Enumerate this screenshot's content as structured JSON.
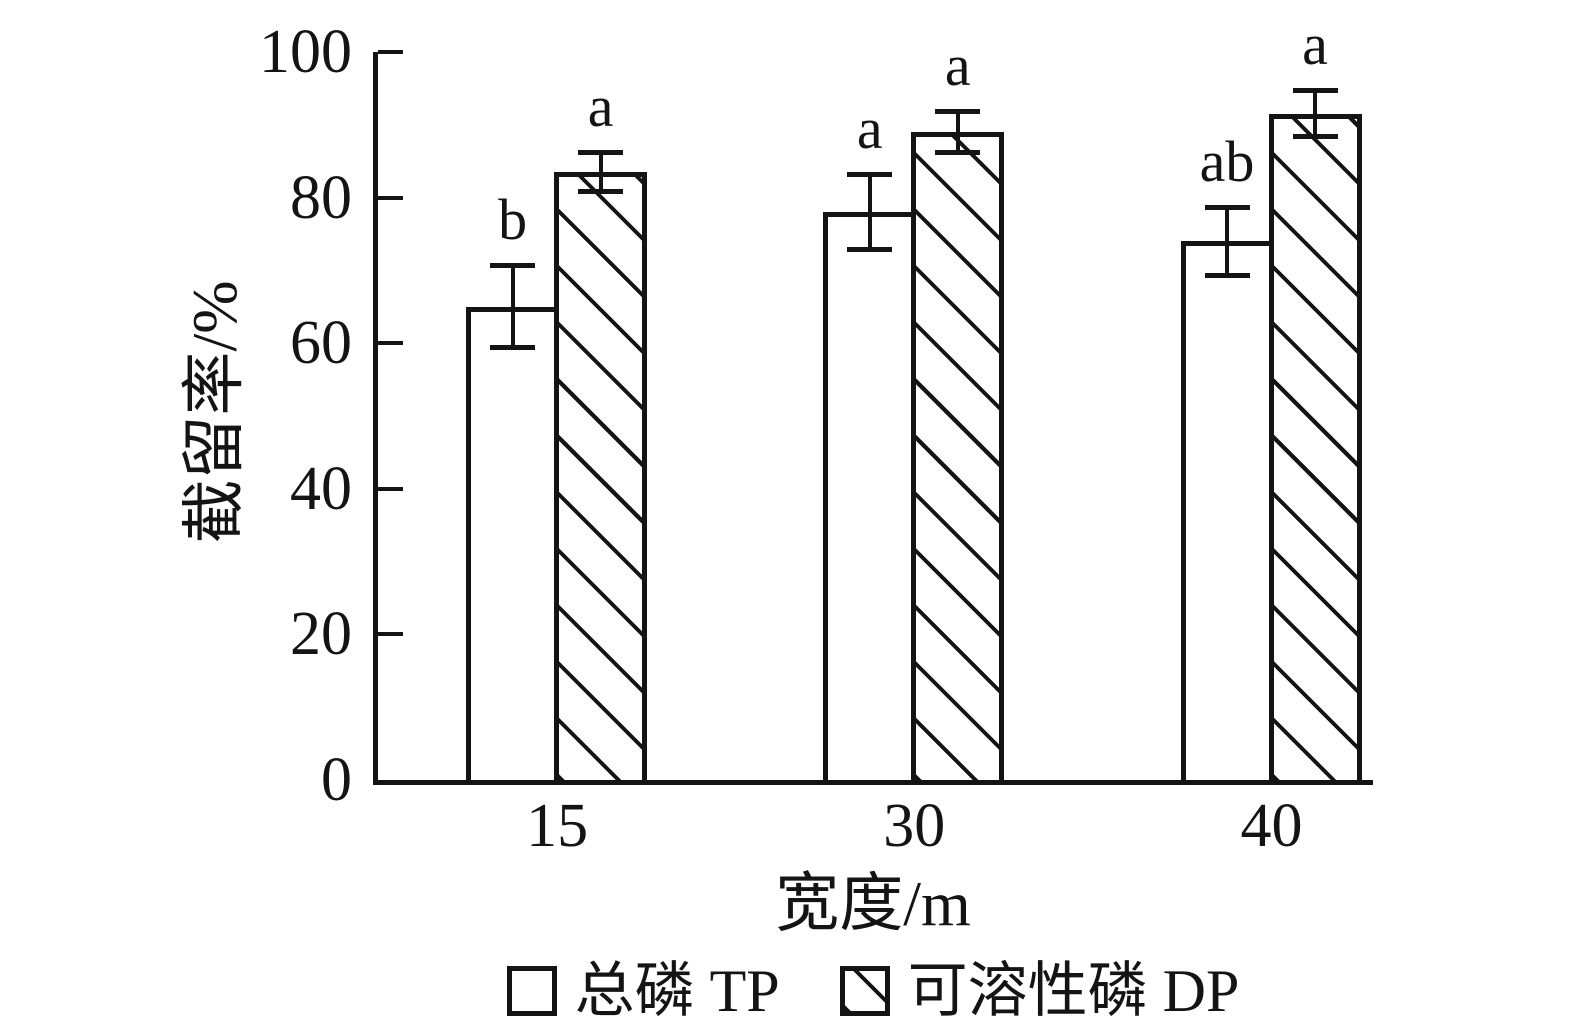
{
  "colors": {
    "ink": "#141414",
    "background": "#ffffff"
  },
  "chart_data": {
    "type": "bar",
    "title": "",
    "xlabel": "宽度/m",
    "ylabel": "截留率/%",
    "categories": [
      "15",
      "30",
      "40"
    ],
    "ylim": [
      0,
      100
    ],
    "yticks": [
      "0",
      "20",
      "40",
      "60",
      "80",
      "100"
    ],
    "grid": false,
    "legend_position": "bottom",
    "series": [
      {
        "name": "总磷 TP",
        "key": "tp",
        "fill": "white",
        "values": [
          65,
          78,
          74
        ],
        "errors": [
          6,
          5.5,
          5
        ],
        "sig_letters": [
          "b",
          "a",
          "ab"
        ]
      },
      {
        "name": "可溶性磷 DP",
        "key": "dp",
        "fill": "hatch",
        "values": [
          83.5,
          89,
          91.5
        ],
        "errors": [
          3,
          3.2,
          3.5
        ],
        "sig_letters": [
          "a",
          "a",
          "a"
        ]
      }
    ]
  }
}
